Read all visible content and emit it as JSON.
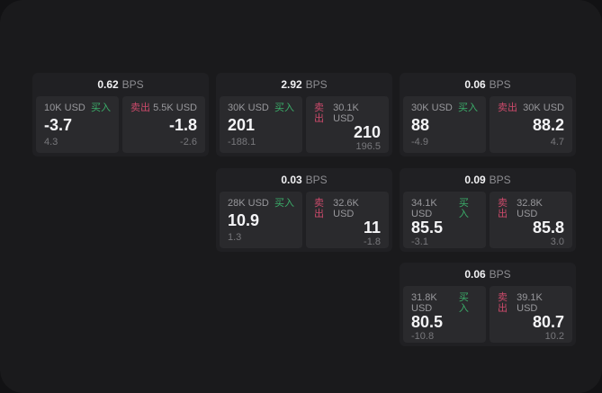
{
  "labels": {
    "buy": "买入",
    "sell": "卖出",
    "bps": "BPS"
  },
  "colors": {
    "buy_green": "#3bae6a",
    "sell_red": "#cc4a6b",
    "page_background": "#1a1a1c",
    "card_background": "#202023",
    "panel_background": "#2a2a2d",
    "text_primary": "#f5f5f7",
    "text_secondary": "#98989c",
    "text_muted": "#78787c"
  },
  "cards": [
    {
      "bps": "0.62",
      "buy": {
        "amount": "10K USD",
        "price": "-3.7",
        "delta": "4.3"
      },
      "sell": {
        "amount": "5.5K USD",
        "price": "-1.8",
        "delta": "-2.6"
      }
    },
    {
      "bps": "2.92",
      "buy": {
        "amount": "30K USD",
        "price": "201",
        "delta": "-188.1"
      },
      "sell": {
        "amount": "30.1K USD",
        "price": "210",
        "delta": "196.5"
      }
    },
    {
      "bps": "0.06",
      "buy": {
        "amount": "30K USD",
        "price": "88",
        "delta": "-4.9"
      },
      "sell": {
        "amount": "30K USD",
        "price": "88.2",
        "delta": "4.7"
      }
    },
    {
      "bps": "0.03",
      "buy": {
        "amount": "28K USD",
        "price": "10.9",
        "delta": "1.3"
      },
      "sell": {
        "amount": "32.6K USD",
        "price": "11",
        "delta": "-1.8"
      }
    },
    {
      "bps": "0.09",
      "buy": {
        "amount": "34.1K USD",
        "price": "85.5",
        "delta": "-3.1"
      },
      "sell": {
        "amount": "32.8K USD",
        "price": "85.8",
        "delta": "3.0"
      }
    },
    {
      "bps": "0.06",
      "buy": {
        "amount": "31.8K USD",
        "price": "80.5",
        "delta": "-10.8"
      },
      "sell": {
        "amount": "39.1K USD",
        "price": "80.7",
        "delta": "10.2"
      }
    }
  ]
}
